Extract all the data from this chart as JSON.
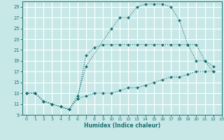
{
  "xlabel": "Humidex (Indice chaleur)",
  "bg_color": "#c8e8e8",
  "grid_color": "#ffffff",
  "line_color": "#1a7070",
  "xlim": [
    -0.5,
    23
  ],
  "ylim": [
    9,
    30
  ],
  "xticks": [
    0,
    1,
    2,
    3,
    4,
    5,
    6,
    7,
    8,
    9,
    10,
    11,
    12,
    13,
    14,
    15,
    16,
    17,
    18,
    19,
    20,
    21,
    22,
    23
  ],
  "yticks": [
    9,
    11,
    13,
    15,
    17,
    19,
    21,
    23,
    25,
    27,
    29
  ],
  "line1_x": [
    0,
    1,
    2,
    3,
    4,
    5,
    6,
    7,
    10,
    11,
    12,
    13,
    14,
    15,
    16,
    17,
    18,
    19,
    20,
    21,
    22
  ],
  "line1_y": [
    13,
    13,
    11.5,
    11,
    10.5,
    10,
    12.5,
    18,
    25,
    27,
    27,
    29,
    29.5,
    29.5,
    29.5,
    29,
    26.5,
    22,
    19,
    19,
    17
  ],
  "line2_x": [
    0,
    1,
    2,
    3,
    4,
    5,
    6,
    7,
    8,
    9,
    10,
    11,
    12,
    13,
    14,
    15,
    16,
    17,
    18,
    19,
    20,
    21,
    22
  ],
  "line2_y": [
    13,
    13,
    11.5,
    11,
    10.5,
    10,
    12,
    20,
    21.5,
    22,
    22,
    22,
    22,
    22,
    22,
    22,
    22,
    22,
    22,
    22,
    22,
    19,
    18
  ],
  "line3_x": [
    0,
    1,
    2,
    3,
    4,
    5,
    6,
    7,
    8,
    9,
    10,
    11,
    12,
    13,
    14,
    15,
    16,
    17,
    18,
    19,
    20,
    21,
    22
  ],
  "line3_y": [
    13,
    13,
    11.5,
    11,
    10.5,
    10,
    12,
    12.5,
    13,
    13,
    13,
    13.5,
    14,
    14,
    14.5,
    15,
    15.5,
    16,
    16,
    16.5,
    17,
    17,
    17
  ]
}
